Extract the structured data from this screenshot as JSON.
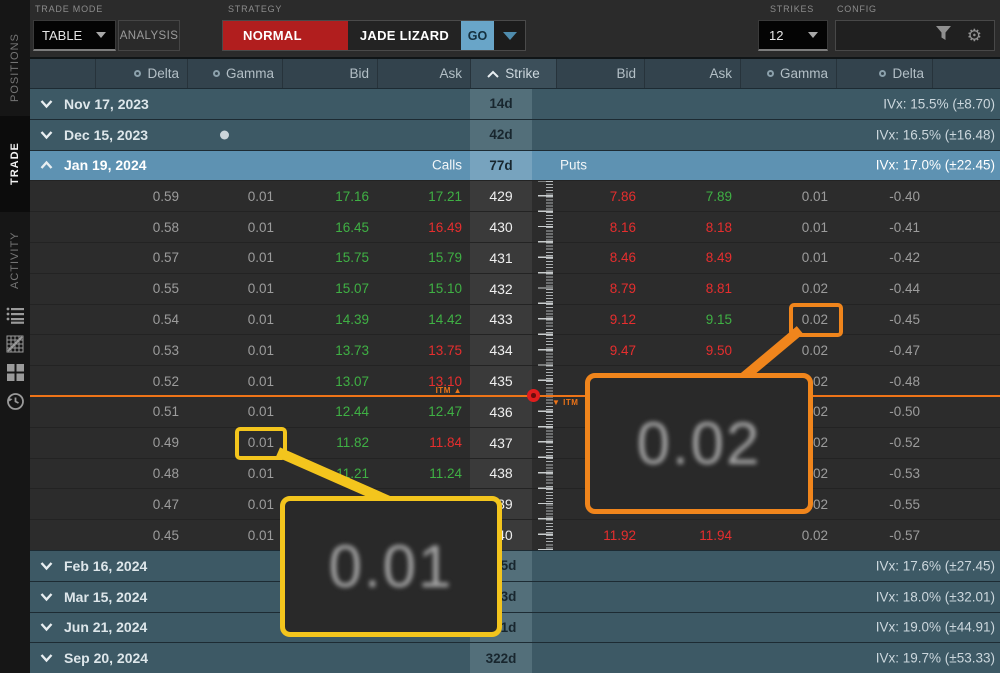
{
  "topbar": {
    "trade_mode_label": "TRADE MODE",
    "table_dropdown_value": "TABLE",
    "analysis_button": "ANALYSIS",
    "strategy_label": "STRATEGY",
    "strategy_mode": "NORMAL",
    "strategy_name": "JADE LIZARD",
    "go_button": "GO",
    "strikes_label": "STRIKES",
    "strikes_value": "12",
    "config_label": "CONFIG"
  },
  "sidebar": {
    "tabs": [
      {
        "label": "POSITIONS",
        "active": false
      },
      {
        "label": "TRADE",
        "active": true
      },
      {
        "label": "ACTIVITY",
        "active": false
      }
    ],
    "icons": [
      "list-icon",
      "chart-grid-icon",
      "grid-icon",
      "history-icon"
    ]
  },
  "table": {
    "headers": {
      "call_delta": "Delta",
      "call_gamma": "Gamma",
      "call_bid": "Bid",
      "call_ask": "Ask",
      "strike": "Strike",
      "put_bid": "Bid",
      "put_ask": "Ask",
      "put_gamma": "Gamma",
      "put_delta": "Delta"
    },
    "expirations_top": [
      {
        "date": "Nov 17, 2023",
        "days": "14d",
        "ivx": "IVx: 15.5% (±8.70)",
        "expanded": false,
        "has_dot": false
      },
      {
        "date": "Dec 15, 2023",
        "days": "42d",
        "ivx": "IVx: 16.5% (±16.48)",
        "expanded": false,
        "has_dot": true
      }
    ],
    "selected_expiration": {
      "date": "Jan 19, 2024",
      "days": "77d",
      "ivx": "IVx: 17.0% (±22.45)",
      "calls_label": "Calls",
      "puts_label": "Puts",
      "expanded": true
    },
    "option_rows": [
      {
        "strike": "429",
        "call": {
          "delta": "0.59",
          "gamma": "0.01",
          "bid": "17.16",
          "bid_dir": "up",
          "ask": "17.21",
          "ask_dir": "up"
        },
        "put": {
          "bid": "7.86",
          "bid_dir": "down",
          "ask": "7.89",
          "ask_dir": "up",
          "gamma": "0.01",
          "delta": "-0.40"
        }
      },
      {
        "strike": "430",
        "call": {
          "delta": "0.58",
          "gamma": "0.01",
          "bid": "16.45",
          "bid_dir": "up",
          "ask": "16.49",
          "ask_dir": "down"
        },
        "put": {
          "bid": "8.16",
          "bid_dir": "down",
          "ask": "8.18",
          "ask_dir": "down",
          "gamma": "0.01",
          "delta": "-0.41"
        }
      },
      {
        "strike": "431",
        "call": {
          "delta": "0.57",
          "gamma": "0.01",
          "bid": "15.75",
          "bid_dir": "up",
          "ask": "15.79",
          "ask_dir": "up"
        },
        "put": {
          "bid": "8.46",
          "bid_dir": "down",
          "ask": "8.49",
          "ask_dir": "down",
          "gamma": "0.01",
          "delta": "-0.42"
        }
      },
      {
        "strike": "432",
        "call": {
          "delta": "0.55",
          "gamma": "0.01",
          "bid": "15.07",
          "bid_dir": "up",
          "ask": "15.10",
          "ask_dir": "up"
        },
        "put": {
          "bid": "8.79",
          "bid_dir": "down",
          "ask": "8.81",
          "ask_dir": "down",
          "gamma": "0.02",
          "delta": "-0.44"
        }
      },
      {
        "strike": "433",
        "call": {
          "delta": "0.54",
          "gamma": "0.01",
          "bid": "14.39",
          "bid_dir": "up",
          "ask": "14.42",
          "ask_dir": "up"
        },
        "put": {
          "bid": "9.12",
          "bid_dir": "down",
          "ask": "9.15",
          "ask_dir": "up",
          "gamma": "0.02",
          "delta": "-0.45"
        }
      },
      {
        "strike": "434",
        "call": {
          "delta": "0.53",
          "gamma": "0.01",
          "bid": "13.73",
          "bid_dir": "up",
          "ask": "13.75",
          "ask_dir": "down"
        },
        "put": {
          "bid": "9.47",
          "bid_dir": "down",
          "ask": "9.50",
          "ask_dir": "down",
          "gamma": "0.02",
          "delta": "-0.47"
        }
      },
      {
        "strike": "435",
        "call": {
          "delta": "0.52",
          "gamma": "0.01",
          "bid": "13.07",
          "bid_dir": "up",
          "ask": "13.10",
          "ask_dir": "down"
        },
        "put": {
          "bid": "",
          "bid_dir": "",
          "ask": "",
          "ask_dir": "",
          "gamma": "0.02",
          "delta": "-0.48"
        }
      },
      {
        "strike": "436",
        "call": {
          "delta": "0.51",
          "gamma": "0.01",
          "bid": "12.44",
          "bid_dir": "up",
          "ask": "12.47",
          "ask_dir": "up"
        },
        "put": {
          "bid": "",
          "bid_dir": "",
          "ask": "",
          "ask_dir": "",
          "gamma": "0.02",
          "delta": "-0.50"
        }
      },
      {
        "strike": "437",
        "call": {
          "delta": "0.49",
          "gamma": "0.01",
          "bid": "11.82",
          "bid_dir": "up",
          "ask": "11.84",
          "ask_dir": "down"
        },
        "put": {
          "bid": "",
          "bid_dir": "",
          "ask": "",
          "ask_dir": "",
          "gamma": "0.02",
          "delta": "-0.52"
        }
      },
      {
        "strike": "438",
        "call": {
          "delta": "0.48",
          "gamma": "0.01",
          "bid": "11.21",
          "bid_dir": "up",
          "ask": "11.24",
          "ask_dir": "up"
        },
        "put": {
          "bid": "",
          "bid_dir": "",
          "ask": "",
          "ask_dir": "",
          "gamma": "0.02",
          "delta": "-0.53"
        }
      },
      {
        "strike": "439",
        "call": {
          "delta": "0.47",
          "gamma": "0.01",
          "bid": "",
          "bid_dir": "",
          "ask": "",
          "ask_dir": ""
        },
        "put": {
          "bid": "",
          "bid_dir": "",
          "ask": "",
          "ask_dir": "",
          "gamma": "0.02",
          "delta": "-0.55"
        }
      },
      {
        "strike": "440",
        "call": {
          "delta": "0.45",
          "gamma": "0.01",
          "bid": "",
          "bid_dir": "",
          "ask": "",
          "ask_dir": ""
        },
        "put": {
          "bid": "11.92",
          "bid_dir": "down",
          "ask": "11.94",
          "ask_dir": "down",
          "gamma": "0.02",
          "delta": "-0.57"
        }
      }
    ],
    "expirations_bottom": [
      {
        "date": "Feb 16, 2024",
        "days": "105d",
        "ivx": "IVx: 17.6% (±27.45)",
        "expanded": false
      },
      {
        "date": "Mar 15, 2024",
        "days": "133d",
        "ivx": "IVx: 18.0% (±32.01)",
        "expanded": false
      },
      {
        "date": "Jun 21, 2024",
        "days": "231d",
        "ivx": "IVx: 19.0% (±44.91)",
        "expanded": false
      },
      {
        "date": "Sep 20, 2024",
        "days": "322d",
        "ivx": "IVx: 19.7% (±53.33)",
        "expanded": false
      }
    ]
  },
  "markers": {
    "itm_call": "ITM",
    "itm_put": "ITM"
  },
  "callouts": {
    "yellow_value": "0.01",
    "orange_value": "0.02"
  },
  "colors": {
    "up": "#3fb044",
    "down": "#e62e2e",
    "itm_orange": "#ee7418",
    "callout_yellow": "#f3c51d",
    "callout_orange": "#f0851c",
    "selected_row": "#5e92b2",
    "expiration_row": "#3d5965"
  }
}
